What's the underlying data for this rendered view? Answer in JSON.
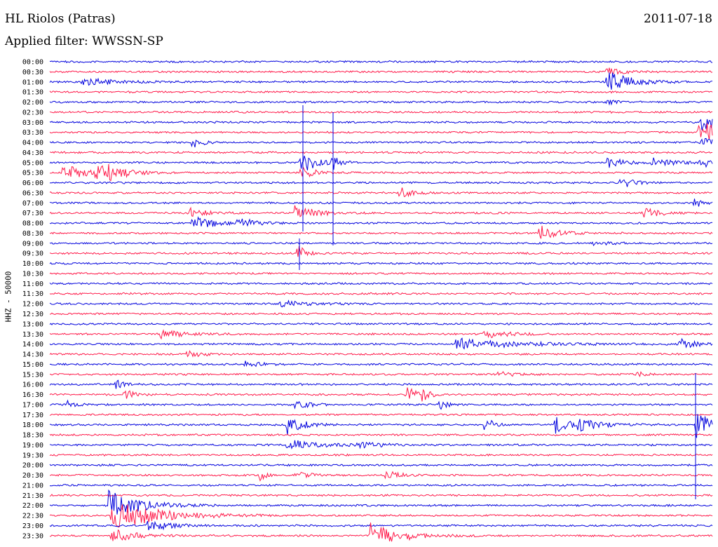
{
  "header": {
    "station": "HL Riolos (Patras)",
    "date": "2011-07-18",
    "filter": "Applied filter: WWSSN-SP",
    "channel_label": "HHZ - 50000"
  },
  "colors": {
    "blue": "#0000dd",
    "red": "#ff1a4a"
  },
  "chart_data": {
    "type": "line",
    "kind": "helicorder",
    "row_labels": [
      "00:00",
      "00:30",
      "01:00",
      "01:30",
      "02:00",
      "02:30",
      "03:00",
      "03:30",
      "04:00",
      "04:30",
      "05:00",
      "05:30",
      "06:00",
      "06:30",
      "07:00",
      "07:30",
      "08:00",
      "08:30",
      "09:00",
      "09:30",
      "10:00",
      "10:30",
      "11:00",
      "11:30",
      "12:00",
      "12:30",
      "13:00",
      "13:30",
      "14:00",
      "14:30",
      "15:00",
      "15:30",
      "16:00",
      "16:30",
      "17:00",
      "17:30",
      "18:00",
      "18:30",
      "19:00",
      "19:30",
      "20:00",
      "20:30",
      "21:00",
      "21:30",
      "22:00",
      "22:30",
      "23:00",
      "23:30"
    ],
    "trace_colors": [
      "blue",
      "red"
    ],
    "minutes_per_line": 30
  }
}
